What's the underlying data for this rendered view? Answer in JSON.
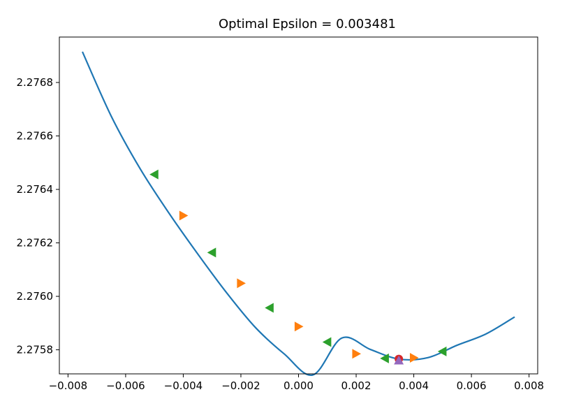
{
  "chart_data": {
    "type": "line",
    "title": "Optimal Epsilon = 0.003481",
    "xlabel": "",
    "ylabel": "",
    "xlim": [
      -0.0083,
      0.0083
    ],
    "ylim": [
      2.27571,
      2.27697
    ],
    "grid": false,
    "legend": "none",
    "x_ticks": [
      -0.008,
      -0.006,
      -0.004,
      -0.002,
      0.0,
      0.002,
      0.004,
      0.006,
      0.008
    ],
    "x_tick_labels": [
      "−0.008",
      "−0.006",
      "−0.004",
      "−0.002",
      "0.000",
      "0.002",
      "0.004",
      "0.006",
      "0.008"
    ],
    "y_ticks": [
      2.2758,
      2.276,
      2.2762,
      2.2764,
      2.2766,
      2.2768
    ],
    "y_tick_labels": [
      "2.2758",
      "2.2760",
      "2.2762",
      "2.2764",
      "2.2766",
      "2.2768"
    ],
    "curve": {
      "color": "#1f77b4",
      "x": [
        -0.0075,
        -0.0065,
        -0.0055,
        -0.0045,
        -0.0035,
        -0.0025,
        -0.0015,
        -0.0005,
        0.0005,
        0.0015,
        0.0025,
        0.0035,
        0.0045,
        0.0055,
        0.0065,
        0.0075
      ],
      "y": [
        2.276915,
        2.276674,
        2.276478,
        2.276312,
        2.276159,
        2.276014,
        2.275884,
        2.275785,
        2.275706,
        2.275844,
        2.275801,
        2.275765,
        2.275771,
        2.275817,
        2.275859,
        2.275923
      ]
    },
    "green_markers": {
      "color": "#2ca02c",
      "marker": "triangle-left",
      "x": [
        -0.005,
        -0.003,
        -0.001,
        0.001,
        0.003,
        0.005
      ],
      "y": [
        2.276456,
        2.276164,
        2.275957,
        2.275829,
        2.275768,
        2.275794
      ]
    },
    "orange_markers": {
      "color": "#ff7f0e",
      "marker": "triangle-right",
      "x": [
        -0.004,
        -0.002,
        0.0,
        0.002,
        0.004
      ],
      "y": [
        2.276302,
        2.276049,
        2.275887,
        2.275785,
        2.27577
      ]
    },
    "optimum_circle": {
      "color": "#d62728",
      "x": 0.003481,
      "y": 2.275766
    },
    "optimum_triangle": {
      "color": "#9467bd",
      "x": 0.003481,
      "y": 2.27576
    }
  }
}
